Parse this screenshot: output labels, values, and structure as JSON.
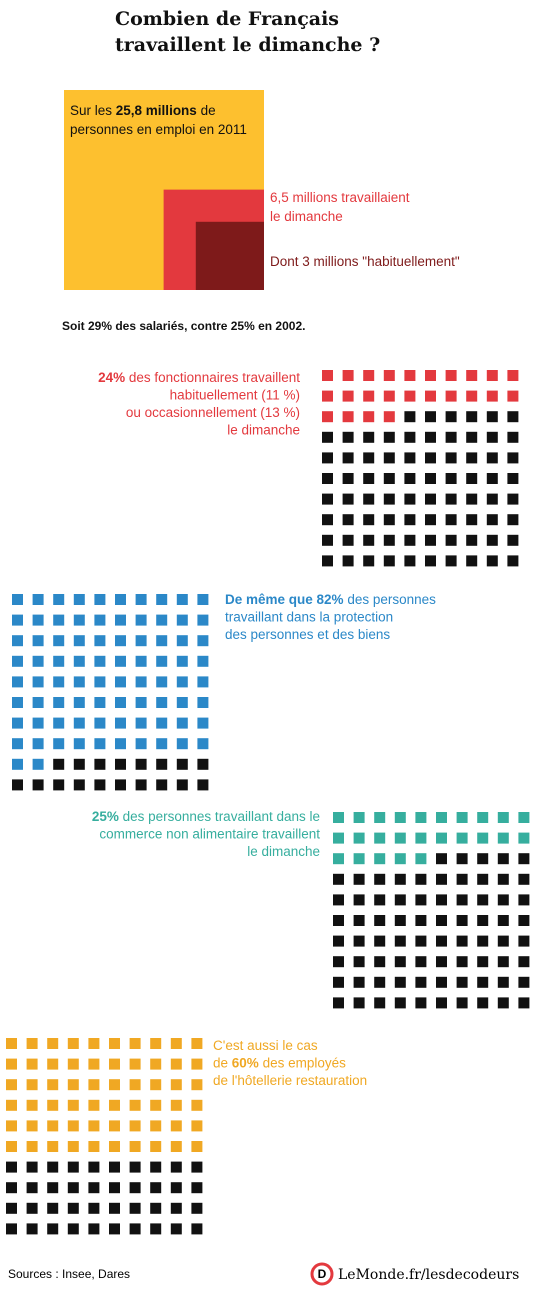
{
  "title": [
    "Combien de Français",
    "travaillent le dimanche ?"
  ],
  "chart_data": [
    {
      "type": "nested-squares",
      "values": [
        25.8,
        6.5,
        3
      ],
      "colors": [
        "#fdc02f",
        "#e3393e",
        "#7e1a1a"
      ],
      "captions": [
        [
          [
            {
              "text": "Sur les "
            },
            {
              "text": "25,8 millions",
              "bold": true
            },
            {
              "text": " de"
            }
          ],
          [
            {
              "text": "personnes en emploi en 2011"
            }
          ]
        ],
        [
          [
            {
              "text": "6,5 millions travaillaient"
            }
          ],
          [
            {
              "text": "le dimanche"
            }
          ]
        ],
        [
          [
            {
              "text": "Dont 3 millions \"habituellement\""
            }
          ]
        ]
      ],
      "note": "Soit 29% des salariés, contre 25% en 2002."
    },
    {
      "type": "waffle",
      "value": 24,
      "color": "#e3393e",
      "text": [
        [
          {
            "text": "24%",
            "bold": true
          },
          {
            "text": " des fonctionnaires travaillent"
          }
        ],
        [
          {
            "text": "habituellement (11 %)"
          }
        ],
        [
          {
            "text": "ou occasionnellement (13 %)"
          }
        ],
        [
          {
            "text": "le dimanche"
          }
        ]
      ]
    },
    {
      "type": "waffle",
      "value": 82,
      "color": "#2b88c8",
      "text": [
        [
          {
            "text": "De même que 82%",
            "bold": true
          },
          {
            "text": " des personnes"
          }
        ],
        [
          {
            "text": "travaillant dans la protection"
          }
        ],
        [
          {
            "text": " des personnes et des biens"
          }
        ]
      ]
    },
    {
      "type": "waffle",
      "value": 25,
      "color": "#36ae9e",
      "text": [
        [
          {
            "text": "25%",
            "bold": true
          },
          {
            "text": " des personnes travaillant dans le"
          }
        ],
        [
          {
            "text": "commerce non alimentaire travaillent"
          }
        ],
        [
          {
            "text": "le dimanche"
          }
        ]
      ]
    },
    {
      "type": "waffle",
      "value": 60,
      "color": "#f0a823",
      "text": [
        [
          {
            "text": "C'est aussi le cas"
          }
        ],
        [
          {
            "text": " de "
          },
          {
            "text": "60%",
            "bold": true
          },
          {
            "text": " des employés"
          }
        ],
        [
          {
            "text": "de l'hôtellerie restauration"
          }
        ]
      ]
    }
  ],
  "footer": {
    "sources": "Sources : Insee, Dares",
    "logo": "D",
    "site": "LeMonde.fr/lesdecodeurs"
  }
}
